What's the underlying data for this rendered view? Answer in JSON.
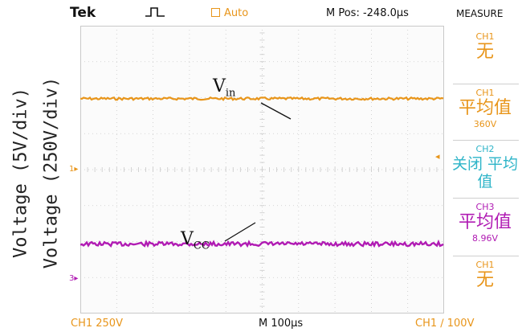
{
  "axis_labels": {
    "left_outer": "Voltage (5V/div)",
    "left_inner": "Voltage (250V/div)"
  },
  "topbar": {
    "brand": "Tek",
    "mode": "Auto",
    "mpos": "M Pos: -248.0µs",
    "measure_title": "MEASURE"
  },
  "graticule": {
    "divisions_x": 10,
    "divisions_y": 8,
    "marker_ch1": "1▸",
    "marker_ch3": "3▸",
    "trigger_position": "↓",
    "trigger_level_arrow": "◂"
  },
  "annotations": {
    "vin_main": "V",
    "vin_sub": "in",
    "vcc_main": "V",
    "vcc_sub": "CC"
  },
  "measure": [
    {
      "channel": "CH1",
      "function": "无",
      "value": "",
      "color": "#e8951a"
    },
    {
      "channel": "CH1",
      "function": "平均值",
      "value": "360V",
      "color": "#e8951a"
    },
    {
      "channel": "CH2",
      "function": "关闭 平均值",
      "value": "",
      "color": "#2db4c8"
    },
    {
      "channel": "CH3",
      "function": "平均值",
      "value": "8.96V",
      "color": "#b01bb3"
    },
    {
      "channel": "CH1",
      "function": "无",
      "value": "",
      "color": "#e8951a"
    }
  ],
  "bottombar": {
    "ch1_scale": "CH1  250V",
    "time_scale": "M 100µs",
    "trigger": "CH1  ∕  100V"
  },
  "colors": {
    "ch1": "#e8951a",
    "ch3": "#b01bb3",
    "ch2": "#2db4c8",
    "grid": "#c9c9c9"
  },
  "traces": {
    "vin_level_div": 1.95,
    "vcc_level_div": 0.95,
    "note_vin_ref": "level relative to CH1 marker, divisions above",
    "note_vcc_ref": "level relative to CH3 marker, divisions above"
  }
}
